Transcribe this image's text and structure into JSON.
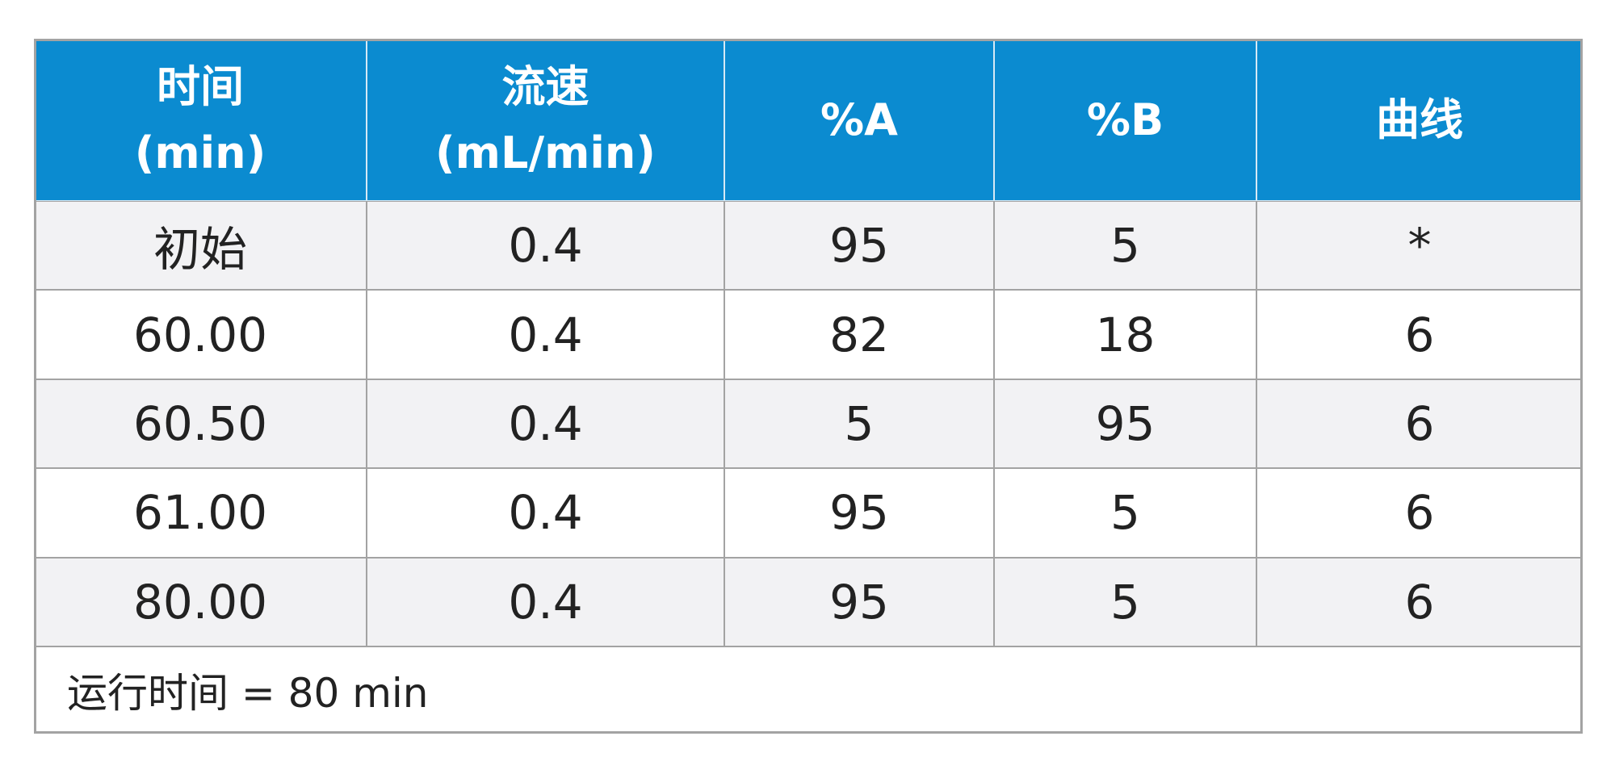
{
  "table": {
    "headers": [
      [
        "时间",
        "(min)"
      ],
      [
        "流速",
        "(mL/min)"
      ],
      [
        "%A"
      ],
      [
        "%B"
      ],
      [
        "曲线"
      ]
    ],
    "rows": [
      [
        "初始",
        "0.4",
        "95",
        "5",
        "*"
      ],
      [
        "60.00",
        "0.4",
        "82",
        "18",
        "6"
      ],
      [
        "60.50",
        "0.4",
        "5",
        "95",
        "6"
      ],
      [
        "61.00",
        "0.4",
        "95",
        "5",
        "6"
      ],
      [
        "80.00",
        "0.4",
        "95",
        "5",
        "6"
      ]
    ],
    "footer": "运行时间 = 80 min"
  }
}
